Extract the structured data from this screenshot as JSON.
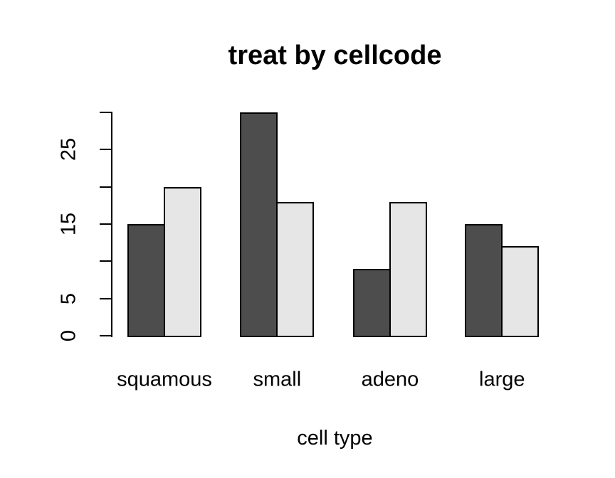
{
  "chart_data": {
    "type": "bar",
    "title": "treat by cellcode",
    "xlabel": "cell type",
    "ylabel": "",
    "categories": [
      "squamous",
      "small",
      "adeno",
      "large"
    ],
    "series": [
      {
        "name": "dark-gray-bars",
        "color": "#4D4D4D",
        "values": [
          15,
          30,
          9,
          15
        ]
      },
      {
        "name": "light-gray-bars",
        "color": "#E6E6E6",
        "values": [
          20,
          18,
          18,
          12
        ]
      }
    ],
    "ylim": [
      0,
      30
    ],
    "yticks": [
      0,
      5,
      10,
      15,
      20,
      25,
      30
    ],
    "ytick_labels": [
      "0",
      "5",
      "",
      "15",
      "",
      "25",
      ""
    ],
    "bar_border_color": "#000000",
    "axis_color": "#000000",
    "text_color": "#000000",
    "background": "#FFFFFF",
    "grid": false,
    "legend_position": "none"
  }
}
